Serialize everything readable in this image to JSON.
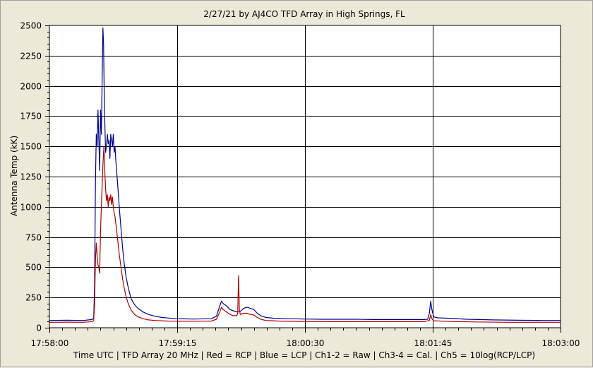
{
  "chart_data": {
    "type": "line",
    "title": "2/27/21  by  AJ4CO TFD Array  in  High Springs, FL",
    "xlabel": "Time UTC | TFD Array 20 MHz | Red = RCP | Blue = LCP | Ch1-2 = Raw | Ch3-4 = Cal. | Ch5 = 10log(RCP/LCP)",
    "ylabel": "Antenna Temp (kK)",
    "xlim_seconds": [
      0,
      300
    ],
    "ylim": [
      0,
      2500
    ],
    "x_ticks": [
      {
        "seconds": 0,
        "label": "17:58:00"
      },
      {
        "seconds": 75,
        "label": "17:59:15"
      },
      {
        "seconds": 150,
        "label": "18:00:30"
      },
      {
        "seconds": 225,
        "label": "18:01:45"
      },
      {
        "seconds": 300,
        "label": "18:03:00"
      }
    ],
    "y_ticks": [
      0,
      250,
      500,
      750,
      1000,
      1250,
      1500,
      1750,
      2000,
      2250,
      2500
    ],
    "grid": true,
    "series": [
      {
        "name": "LCP",
        "color": "#00008b",
        "points": [
          [
            0,
            60
          ],
          [
            10,
            62
          ],
          [
            20,
            60
          ],
          [
            25,
            68
          ],
          [
            26,
            80
          ],
          [
            26.5,
            350
          ],
          [
            27,
            1200
          ],
          [
            27.5,
            1600
          ],
          [
            28,
            1500
          ],
          [
            28.5,
            1800
          ],
          [
            29,
            1550
          ],
          [
            29.5,
            1300
          ],
          [
            30,
            1800
          ],
          [
            30.5,
            1600
          ],
          [
            31,
            2100
          ],
          [
            31.4,
            2480
          ],
          [
            31.8,
            2350
          ],
          [
            32.2,
            1900
          ],
          [
            32.6,
            1650
          ],
          [
            33,
            1450
          ],
          [
            33.5,
            1500
          ],
          [
            34,
            1600
          ],
          [
            34.5,
            1520
          ],
          [
            35,
            1550
          ],
          [
            35.5,
            1400
          ],
          [
            36,
            1600
          ],
          [
            36.5,
            1550
          ],
          [
            37,
            1500
          ],
          [
            37.5,
            1600
          ],
          [
            38,
            1450
          ],
          [
            38.5,
            1500
          ],
          [
            39,
            1380
          ],
          [
            40,
            1200
          ],
          [
            41,
            1000
          ],
          [
            42,
            820
          ],
          [
            43,
            650
          ],
          [
            44,
            520
          ],
          [
            45,
            420
          ],
          [
            46,
            350
          ],
          [
            47,
            290
          ],
          [
            48,
            240
          ],
          [
            50,
            190
          ],
          [
            52,
            160
          ],
          [
            55,
            130
          ],
          [
            58,
            110
          ],
          [
            62,
            95
          ],
          [
            66,
            85
          ],
          [
            70,
            80
          ],
          [
            75,
            75
          ],
          [
            85,
            72
          ],
          [
            95,
            75
          ],
          [
            98,
            95
          ],
          [
            100,
            180
          ],
          [
            101,
            220
          ],
          [
            102,
            200
          ],
          [
            104,
            180
          ],
          [
            106,
            150
          ],
          [
            108,
            140
          ],
          [
            110,
            130
          ],
          [
            112,
            135
          ],
          [
            114,
            160
          ],
          [
            116,
            170
          ],
          [
            118,
            160
          ],
          [
            120,
            150
          ],
          [
            122,
            120
          ],
          [
            124,
            100
          ],
          [
            127,
            85
          ],
          [
            132,
            78
          ],
          [
            140,
            75
          ],
          [
            150,
            72
          ],
          [
            160,
            70
          ],
          [
            170,
            70
          ],
          [
            180,
            70
          ],
          [
            190,
            68
          ],
          [
            200,
            68
          ],
          [
            210,
            68
          ],
          [
            220,
            68
          ],
          [
            222,
            70
          ],
          [
            223,
            120
          ],
          [
            223.8,
            220
          ],
          [
            224.5,
            150
          ],
          [
            225.5,
            90
          ],
          [
            228,
            82
          ],
          [
            235,
            78
          ],
          [
            245,
            70
          ],
          [
            260,
            65
          ],
          [
            275,
            62
          ],
          [
            290,
            60
          ],
          [
            300,
            60
          ]
        ]
      },
      {
        "name": "RCP",
        "color": "#b00000",
        "points": [
          [
            0,
            45
          ],
          [
            10,
            46
          ],
          [
            20,
            45
          ],
          [
            25,
            50
          ],
          [
            26,
            60
          ],
          [
            26.5,
            200
          ],
          [
            27,
            550
          ],
          [
            27.5,
            700
          ],
          [
            28,
            600
          ],
          [
            28.5,
            520
          ],
          [
            29,
            500
          ],
          [
            29.5,
            450
          ],
          [
            30,
            800
          ],
          [
            30.5,
            1000
          ],
          [
            31,
            1200
          ],
          [
            31.4,
            1350
          ],
          [
            32,
            1500
          ],
          [
            32.5,
            1300
          ],
          [
            33,
            1150
          ],
          [
            33.5,
            1050
          ],
          [
            34,
            1100
          ],
          [
            34.5,
            1000
          ],
          [
            35,
            1080
          ],
          [
            35.5,
            1050
          ],
          [
            36,
            1100
          ],
          [
            36.5,
            1020
          ],
          [
            37,
            1080
          ],
          [
            37.5,
            1000
          ],
          [
            38,
            950
          ],
          [
            38.5,
            920
          ],
          [
            39,
            860
          ],
          [
            40,
            740
          ],
          [
            41,
            610
          ],
          [
            42,
            500
          ],
          [
            43,
            400
          ],
          [
            44,
            320
          ],
          [
            45,
            260
          ],
          [
            46,
            210
          ],
          [
            47,
            175
          ],
          [
            48,
            145
          ],
          [
            50,
            110
          ],
          [
            52,
            90
          ],
          [
            55,
            75
          ],
          [
            58,
            65
          ],
          [
            62,
            60
          ],
          [
            70,
            55
          ],
          [
            80,
            54
          ],
          [
            95,
            55
          ],
          [
            98,
            70
          ],
          [
            100,
            130
          ],
          [
            101,
            170
          ],
          [
            102,
            150
          ],
          [
            104,
            130
          ],
          [
            106,
            110
          ],
          [
            108,
            100
          ],
          [
            110,
            100
          ],
          [
            110.5,
            120
          ],
          [
            111,
            430
          ],
          [
            111.5,
            150
          ],
          [
            112,
            110
          ],
          [
            114,
            120
          ],
          [
            116,
            120
          ],
          [
            118,
            110
          ],
          [
            120,
            105
          ],
          [
            122,
            85
          ],
          [
            124,
            70
          ],
          [
            127,
            60
          ],
          [
            135,
            55
          ],
          [
            150,
            52
          ],
          [
            170,
            50
          ],
          [
            190,
            50
          ],
          [
            210,
            50
          ],
          [
            220,
            50
          ],
          [
            223,
            60
          ],
          [
            223.8,
            110
          ],
          [
            224.5,
            75
          ],
          [
            225.5,
            58
          ],
          [
            235,
            52
          ],
          [
            250,
            48
          ],
          [
            270,
            45
          ],
          [
            290,
            45
          ],
          [
            300,
            45
          ]
        ]
      }
    ]
  }
}
